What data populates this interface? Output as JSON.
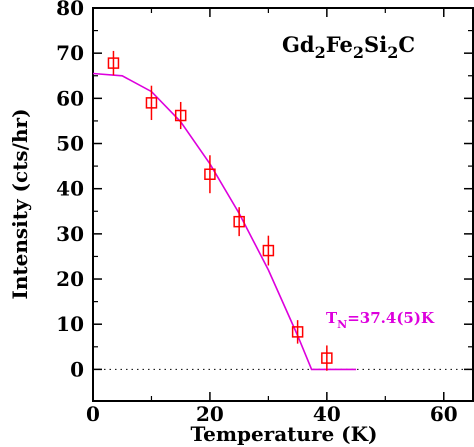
{
  "chart_data": {
    "type": "scatter",
    "xlabel": "Temperature (K)",
    "ylabel": "Intensity (cts/hr)",
    "xlim": [
      0,
      65
    ],
    "ylim": [
      -7,
      80
    ],
    "xticks": [
      0,
      20,
      40,
      60
    ],
    "yticks": [
      0,
      10,
      20,
      30,
      40,
      50,
      60,
      70,
      80
    ],
    "grid": false,
    "compound": {
      "base": [
        "Gd",
        "Fe",
        "Si",
        "C"
      ],
      "subs": [
        "2",
        "2",
        "2",
        ""
      ]
    },
    "annotation": {
      "main": "T",
      "sub": "N",
      "rest": "=37.4(5)K",
      "color": "#dd00dd"
    },
    "series": [
      {
        "marker": "open-square",
        "color": "#ff0000",
        "x": [
          3.5,
          10,
          15,
          20,
          25,
          30,
          35,
          40
        ],
        "y": [
          67.8,
          59.0,
          56.2,
          43.2,
          32.7,
          26.3,
          8.3,
          2.5
        ],
        "yerr": [
          2.7,
          3.8,
          3.0,
          4.2,
          3.2,
          3.3,
          2.6,
          2.8
        ]
      }
    ],
    "fit": {
      "color": "#dd00dd",
      "x": [
        0,
        5,
        10,
        15,
        20,
        25,
        30,
        35,
        37.4,
        45
      ],
      "y": [
        65.5,
        65.0,
        61.5,
        54.8,
        45.5,
        34.5,
        22.0,
        7.5,
        0,
        0
      ]
    },
    "baseline": {
      "y": 0,
      "style": "dotted"
    }
  }
}
